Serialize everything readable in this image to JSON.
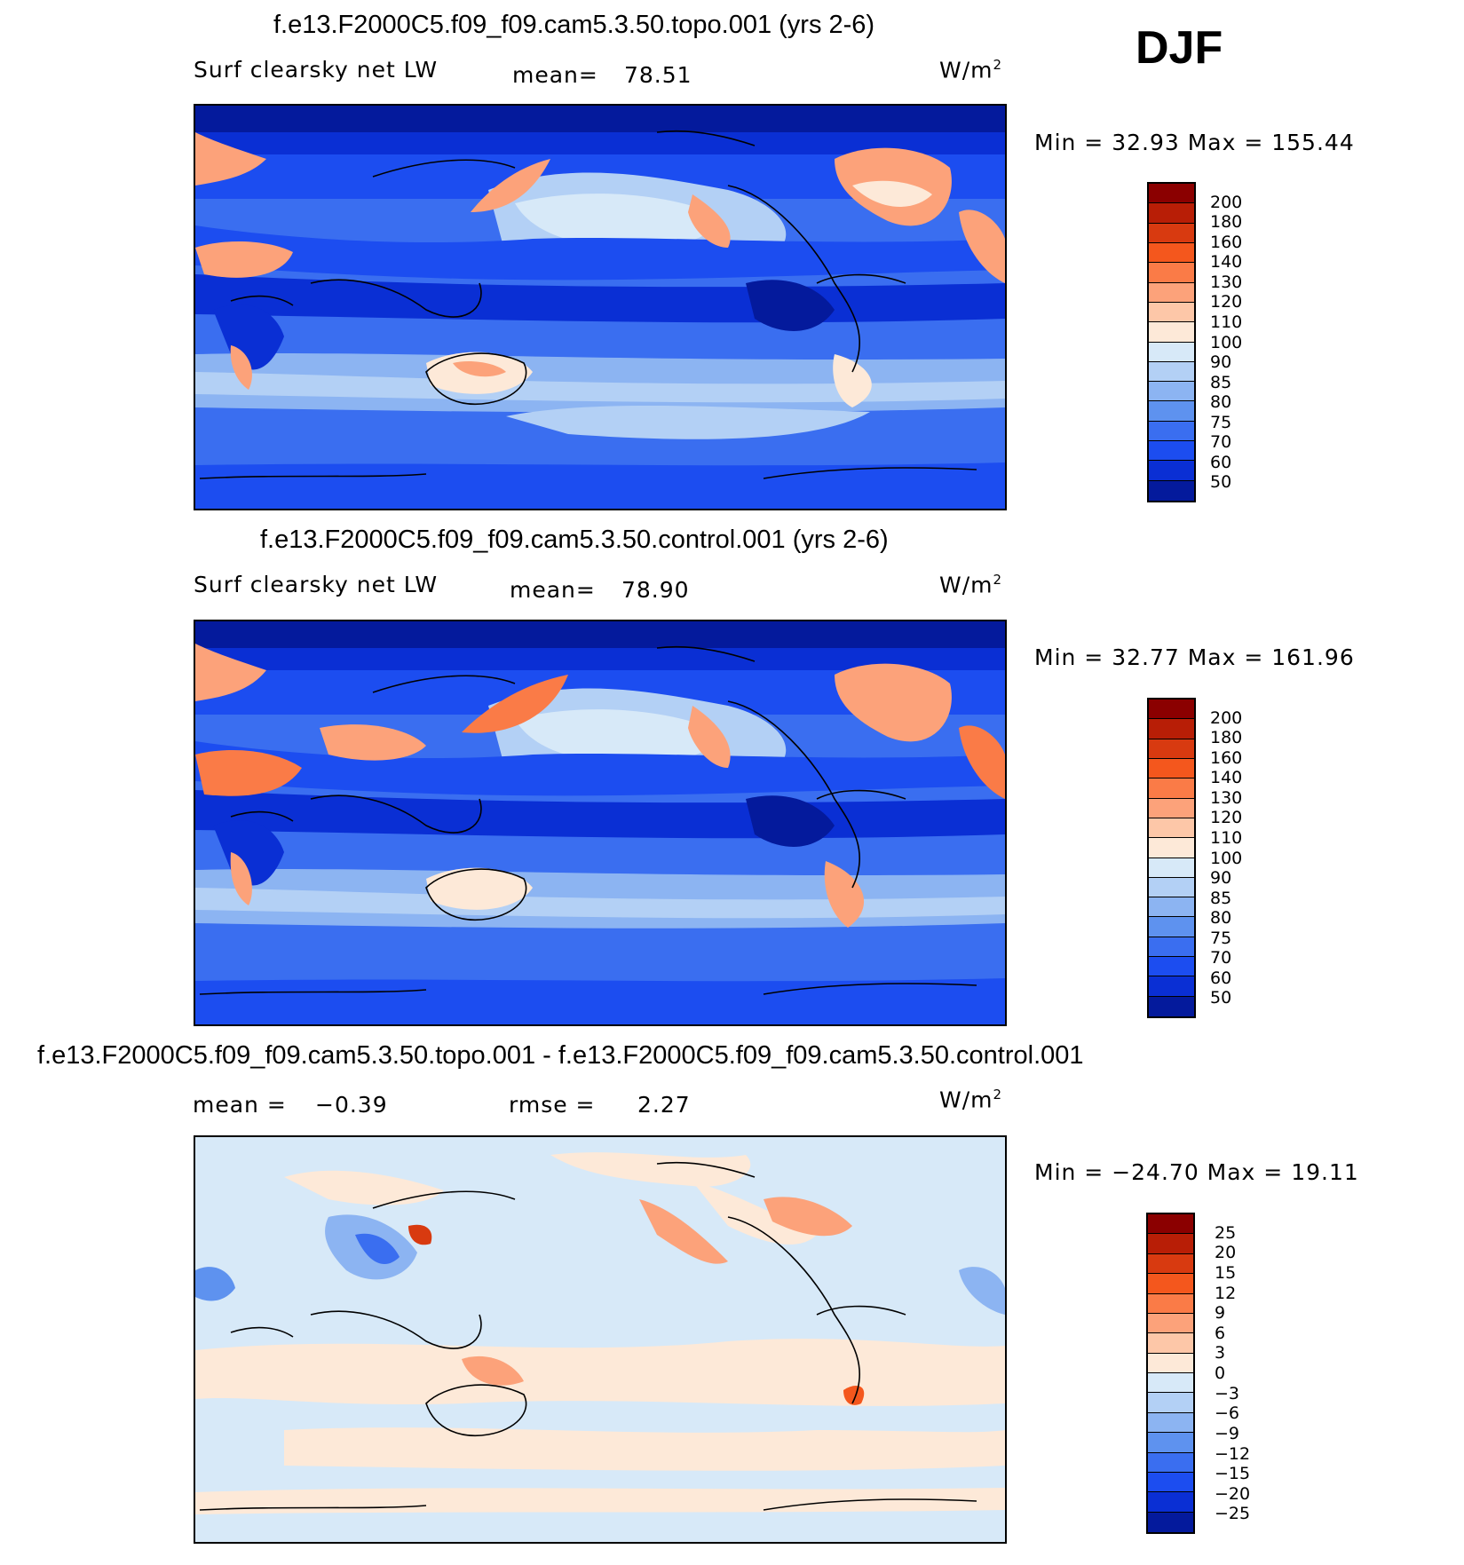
{
  "season": "DJF",
  "panels": [
    {
      "id": "topo",
      "title": "f.e13.F2000C5.f09_f09.cam5.3.50.topo.001 (yrs 2-6)",
      "variable": "Surf clearsky net LW",
      "stat1": "mean=",
      "stat1_value": "78.51",
      "stat2": "",
      "stat2_value": "",
      "units_base": "W/m",
      "units_exp": "2",
      "minmax": "Min =   32.93 Max = 155.44",
      "colorbar": {
        "labels": [
          "200",
          "180",
          "160",
          "140",
          "130",
          "120",
          "110",
          "100",
          "90",
          "85",
          "80",
          "75",
          "70",
          "60",
          "50"
        ],
        "colors": [
          "#8b0000",
          "#b81e06",
          "#d83a10",
          "#f4571d",
          "#fa7b47",
          "#fca27a",
          "#fdc7a8",
          "#fde9d8",
          "#d7e9f8",
          "#b3d0f5",
          "#8cb4f2",
          "#5e92ef",
          "#3a6ef0",
          "#1c4df0",
          "#0a2fd4",
          "#041a9c"
        ]
      }
    },
    {
      "id": "control",
      "title": "f.e13.F2000C5.f09_f09.cam5.3.50.control.001 (yrs 2-6)",
      "variable": "Surf clearsky net LW",
      "stat1": "mean=",
      "stat1_value": "78.90",
      "stat2": "",
      "stat2_value": "",
      "units_base": "W/m",
      "units_exp": "2",
      "minmax": "Min =   32.77 Max = 161.96",
      "colorbar": {
        "labels": [
          "200",
          "180",
          "160",
          "140",
          "130",
          "120",
          "110",
          "100",
          "90",
          "85",
          "80",
          "75",
          "70",
          "60",
          "50"
        ],
        "colors": [
          "#8b0000",
          "#b81e06",
          "#d83a10",
          "#f4571d",
          "#fa7b47",
          "#fca27a",
          "#fdc7a8",
          "#fde9d8",
          "#d7e9f8",
          "#b3d0f5",
          "#8cb4f2",
          "#5e92ef",
          "#3a6ef0",
          "#1c4df0",
          "#0a2fd4",
          "#041a9c"
        ]
      }
    },
    {
      "id": "diff",
      "title": "f.e13.F2000C5.f09_f09.cam5.3.50.topo.001 - f.e13.F2000C5.f09_f09.cam5.3.50.control.001",
      "variable": "",
      "stat1": "mean =",
      "stat1_value": "−0.39",
      "stat2": "rmse =",
      "stat2_value": "2.27",
      "units_base": "W/m",
      "units_exp": "2",
      "minmax": "Min = −24.70 Max =   19.11",
      "colorbar": {
        "labels": [
          "25",
          "20",
          "15",
          "12",
          "9",
          "6",
          "3",
          "0",
          "−3",
          "−6",
          "−9",
          "−12",
          "−15",
          "−20",
          "−25"
        ],
        "colors": [
          "#8b0000",
          "#b81e06",
          "#d83a10",
          "#f4571d",
          "#fa7b47",
          "#fca27a",
          "#fdc7a8",
          "#fde9d8",
          "#d7e9f8",
          "#b3d0f5",
          "#8cb4f2",
          "#5e92ef",
          "#3a6ef0",
          "#1c4df0",
          "#0a2fd4",
          "#041a9c"
        ]
      }
    }
  ]
}
